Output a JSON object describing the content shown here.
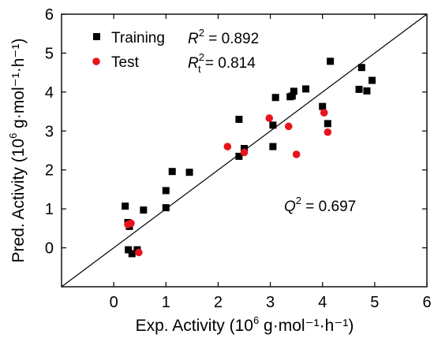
{
  "chart_data": {
    "type": "scatter",
    "xlabel": {
      "prefix": "Exp. Activity (10",
      "sup": "6",
      "suffix": " g·mol⁻¹·h⁻¹)"
    },
    "ylabel": {
      "prefix": "Pred. Activity (10",
      "sup": "6",
      "suffix": " g·mol⁻¹·h⁻¹)"
    },
    "xlim": [
      -1,
      6
    ],
    "ylim": [
      -1,
      6
    ],
    "xticks": [
      "0",
      "1",
      "2",
      "3",
      "4",
      "5",
      "6"
    ],
    "yticks": [
      "0",
      "1",
      "2",
      "3",
      "4",
      "5",
      "6"
    ],
    "grid": false,
    "legend_position": "top-left",
    "reference_line": {
      "from": [
        -1,
        -1
      ],
      "to": [
        6,
        6
      ]
    },
    "series": [
      {
        "name": "Training",
        "marker": "square",
        "color": "#000000",
        "points": [
          [
            0.22,
            1.07
          ],
          [
            0.27,
            0.65
          ],
          [
            0.3,
            0.55
          ],
          [
            0.28,
            -0.05
          ],
          [
            0.35,
            -0.15
          ],
          [
            0.45,
            -0.05
          ],
          [
            0.57,
            0.97
          ],
          [
            1.0,
            1.03
          ],
          [
            1.0,
            1.47
          ],
          [
            1.12,
            1.96
          ],
          [
            1.45,
            1.94
          ],
          [
            2.4,
            3.3
          ],
          [
            2.4,
            2.35
          ],
          [
            2.5,
            2.55
          ],
          [
            3.05,
            3.15
          ],
          [
            3.05,
            2.6
          ],
          [
            3.1,
            3.86
          ],
          [
            3.38,
            3.88
          ],
          [
            3.42,
            3.9
          ],
          [
            3.45,
            4.02
          ],
          [
            3.68,
            4.08
          ],
          [
            4.0,
            3.63
          ],
          [
            4.1,
            3.19
          ],
          [
            4.15,
            4.79
          ],
          [
            4.7,
            4.07
          ],
          [
            4.75,
            4.63
          ],
          [
            4.85,
            4.03
          ],
          [
            4.95,
            4.3
          ]
        ]
      },
      {
        "name": "Test",
        "marker": "circle",
        "color": "#e8141c",
        "points": [
          [
            0.27,
            0.6
          ],
          [
            0.33,
            0.63
          ],
          [
            0.48,
            -0.12
          ],
          [
            2.18,
            2.6
          ],
          [
            2.5,
            2.45
          ],
          [
            2.98,
            3.33
          ],
          [
            3.35,
            3.12
          ],
          [
            3.5,
            2.4
          ],
          [
            4.03,
            3.47
          ],
          [
            4.1,
            2.97
          ]
        ]
      }
    ],
    "annotations": [
      {
        "sym": "R",
        "sup": "2",
        "sub": "",
        "text": " = 0.892"
      },
      {
        "sym": "R",
        "sup": "2",
        "sub": "t",
        "text": " = 0.814"
      },
      {
        "sym": "Q",
        "sup": "2",
        "sub": "",
        "text": " = 0.697"
      }
    ]
  }
}
